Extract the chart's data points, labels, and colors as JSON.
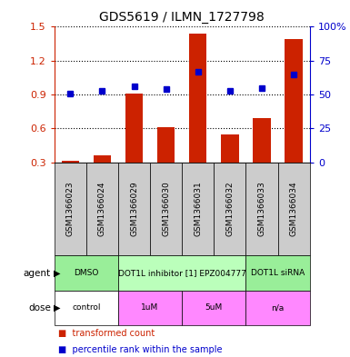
{
  "title": "GDS5619 / ILMN_1727798",
  "samples": [
    "GSM1366023",
    "GSM1366024",
    "GSM1366029",
    "GSM1366030",
    "GSM1366031",
    "GSM1366032",
    "GSM1366033",
    "GSM1366034"
  ],
  "transformed_count": [
    0.315,
    0.365,
    0.91,
    0.615,
    1.44,
    0.545,
    0.695,
    1.39
  ],
  "percentile_rank_left": [
    0.91,
    0.93,
    0.97,
    0.95,
    1.1,
    0.93,
    0.96,
    1.08
  ],
  "ylim_left": [
    0.3,
    1.5
  ],
  "ylim_right": [
    0,
    100
  ],
  "yticks_left": [
    0.3,
    0.6,
    0.9,
    1.2,
    1.5
  ],
  "yticks_right": [
    0,
    25,
    50,
    75,
    100
  ],
  "bar_color": "#cc2200",
  "dot_color": "#0000cc",
  "agent_groups": [
    {
      "label": "DMSO",
      "start": 0,
      "end": 2,
      "color": "#99ee99"
    },
    {
      "label": "DOT1L inhibitor [1] EPZ004777",
      "start": 2,
      "end": 6,
      "color": "#bbffbb"
    },
    {
      "label": "DOT1L siRNA",
      "start": 6,
      "end": 8,
      "color": "#99ee99"
    }
  ],
  "dose_groups": [
    {
      "label": "control",
      "start": 0,
      "end": 2,
      "color": "#ffffff"
    },
    {
      "label": "1uM",
      "start": 2,
      "end": 4,
      "color": "#ff88ff"
    },
    {
      "label": "5uM",
      "start": 4,
      "end": 6,
      "color": "#ff88ff"
    },
    {
      "label": "n/a",
      "start": 6,
      "end": 8,
      "color": "#ff88ff"
    }
  ],
  "legend_items": [
    {
      "label": "transformed count",
      "color": "#cc2200"
    },
    {
      "label": "percentile rank within the sample",
      "color": "#0000cc"
    }
  ],
  "row_labels": [
    "agent",
    "dose"
  ],
  "gray_color": "#cccccc",
  "background_color": "#ffffff"
}
